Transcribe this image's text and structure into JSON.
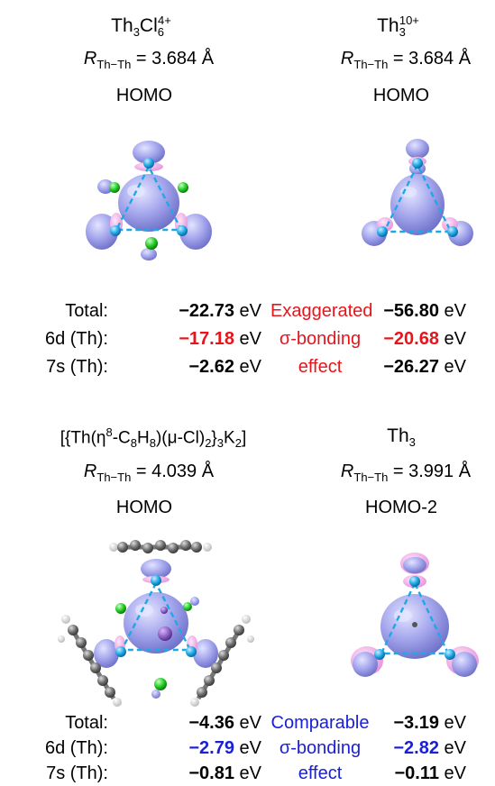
{
  "top": {
    "left": {
      "formula_main": "Th",
      "formula_sub1": "3",
      "formula_mid": "Cl",
      "formula_sub2": "6",
      "formula_sup": "4+",
      "distance_R": "R",
      "distance_sub": "Th−Th",
      "distance_value": " = 3.684 Å",
      "orbital": "HOMO"
    },
    "right": {
      "formula_main": "Th",
      "formula_sub1": "3",
      "formula_sup": "10+",
      "distance_R": "R",
      "distance_sub": "Th−Th",
      "distance_value": " = 3.684 Å",
      "orbital": "HOMO"
    },
    "energies": {
      "labels": [
        "Total:",
        "6d (Th):",
        "7s (Th):"
      ],
      "left_values": [
        "−22.73",
        "−17.18",
        "−2.62"
      ],
      "right_values": [
        "−56.80",
        "−20.68",
        "−26.27"
      ],
      "unit": " eV",
      "note": [
        "Exaggerated",
        "σ-bonding",
        "effect"
      ]
    }
  },
  "bottom": {
    "left": {
      "formula_a": "[{Th(η",
      "formula_sup": "8",
      "formula_b": "-C",
      "formula_sub1": "8",
      "formula_c": "H",
      "formula_sub2": "8",
      "formula_d": ")(μ-Cl)",
      "formula_sub3": "2",
      "formula_e": "}",
      "formula_sub4": "3",
      "formula_f": "K",
      "formula_sub5": "2",
      "formula_g": "]",
      "distance_R": "R",
      "distance_sub": "Th−Th",
      "distance_value": " = 4.039 Å",
      "orbital": "HOMO"
    },
    "right": {
      "formula_main": "Th",
      "formula_sub1": "3",
      "distance_R": "R",
      "distance_sub": "Th−Th",
      "distance_value": " = 3.991 Å",
      "orbital": "HOMO-2"
    },
    "energies": {
      "labels": [
        "Total:",
        "6d (Th):",
        "7s (Th):"
      ],
      "left_values": [
        "−4.36",
        "−2.79",
        "−0.81"
      ],
      "right_values": [
        "−3.19",
        "−2.82",
        "−0.11"
      ],
      "unit": " eV",
      "note": [
        "Comparable",
        "σ-bonding",
        "effect"
      ]
    }
  },
  "colors": {
    "orbital_lobe": "#9b9de8",
    "orbital_pink": "#f0a6e6",
    "thorium_atom": "#1fa8e6",
    "chlorine_atom": "#22cc22",
    "carbon_atom": "#6e6e6e",
    "potassium_atom": "#7a3fb5",
    "highlight_red": "#e8141b",
    "highlight_blue": "#1a20d8"
  }
}
